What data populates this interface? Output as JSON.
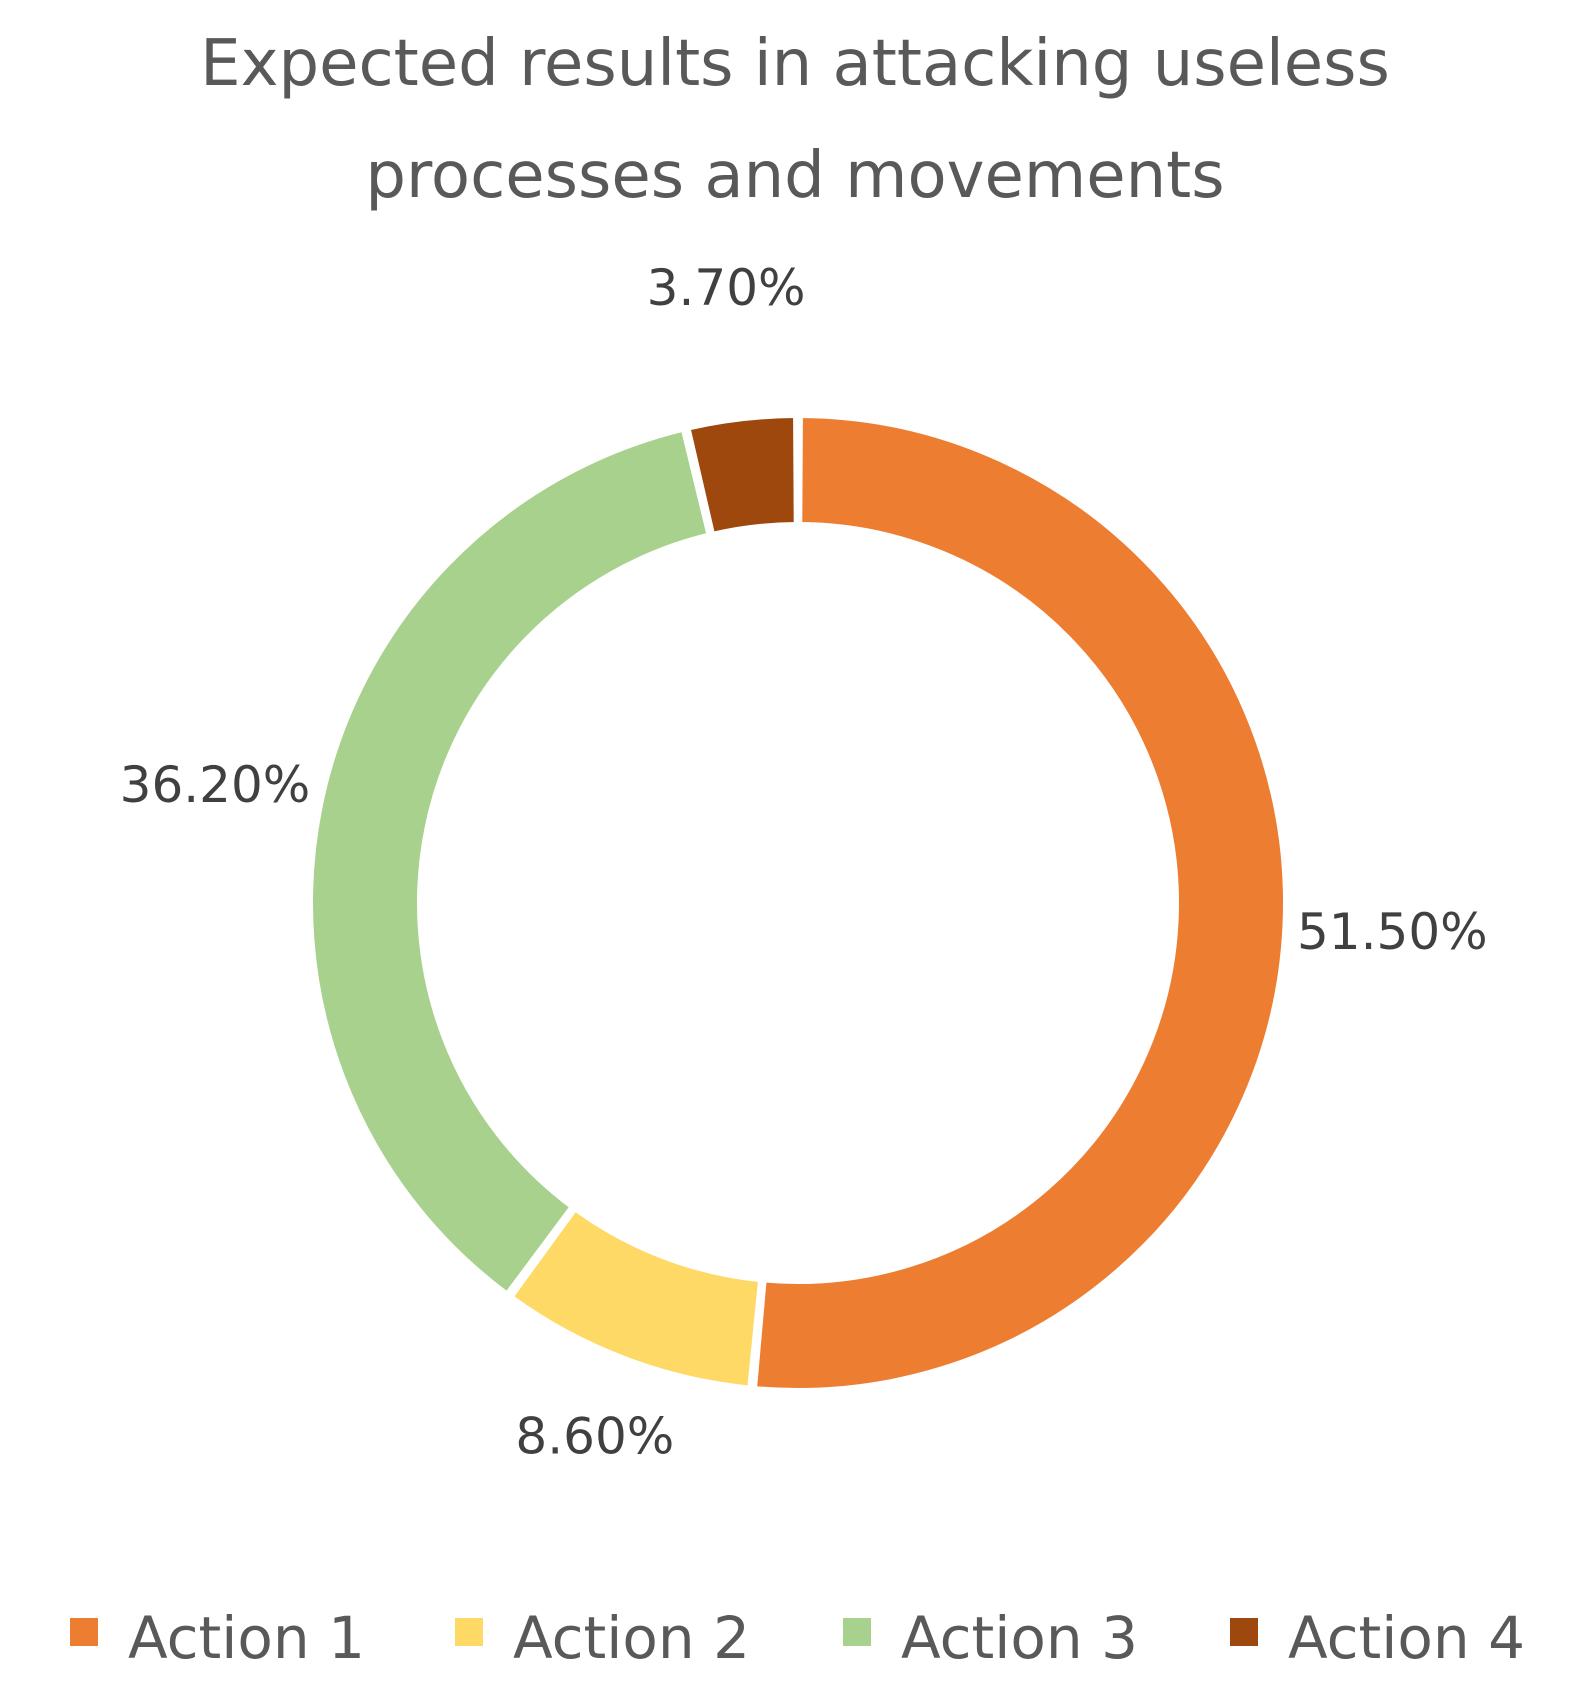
{
  "chart_data": {
    "type": "donut",
    "title_lines": [
      "Expected results in attacking useless",
      "processes and movements"
    ],
    "categories": [
      "Action 1",
      "Action 2",
      "Action 3",
      "Action 4"
    ],
    "values": [
      51.5,
      8.6,
      36.2,
      3.7
    ],
    "data_labels": [
      "51.50%",
      "8.60%",
      "36.20%",
      "3.70%"
    ],
    "colors": [
      "#ED7D31",
      "#FFD966",
      "#A9D18E",
      "#9E480E"
    ],
    "legend_position": "bottom",
    "start_angle_deg": 0,
    "direction": "clockwise"
  }
}
